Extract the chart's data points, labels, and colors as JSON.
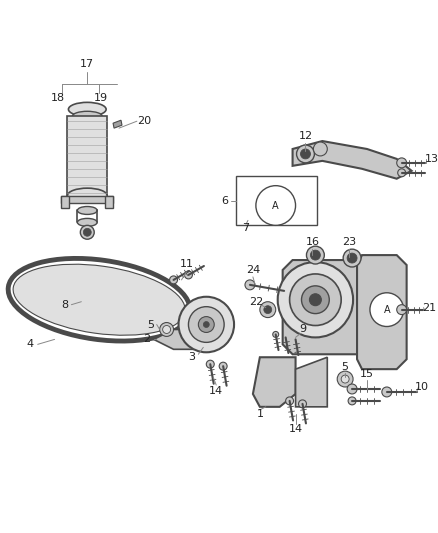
{
  "bg_color": "#ffffff",
  "line_color": "#4a4a4a",
  "fig_width": 4.38,
  "fig_height": 5.33,
  "dpi": 100,
  "gray_fill": "#c8c8c8",
  "gray_mid": "#a0a0a0",
  "gray_light": "#e0e0e0",
  "gray_dark": "#707070",
  "leader_color": "#888888"
}
